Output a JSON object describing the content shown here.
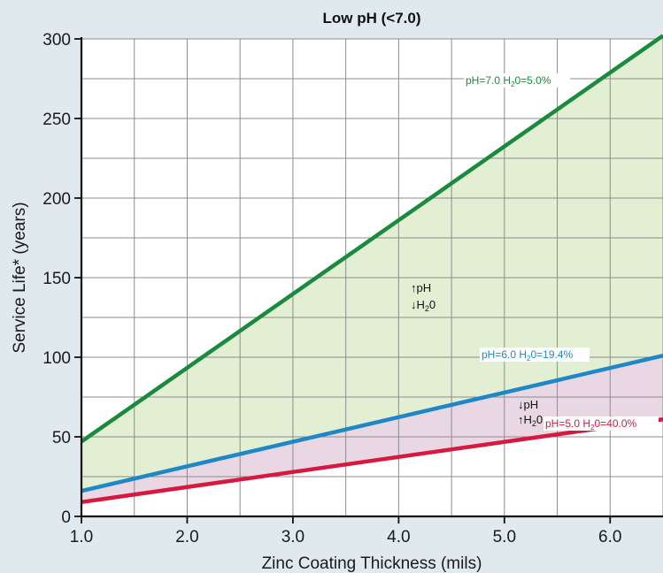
{
  "chart_data": {
    "type": "line",
    "title": "Low pH (<7.0)",
    "xlabel": "Zinc Coating Thickness (mils)",
    "ylabel": "Service Life* (years)",
    "xlim": [
      1.0,
      6.5
    ],
    "ylim": [
      0,
      300
    ],
    "x_ticks": [
      "1.0",
      "2.0",
      "3.0",
      "4.0",
      "5.0",
      "6.0"
    ],
    "y_ticks": [
      "0",
      "50",
      "100",
      "150",
      "200",
      "250",
      "300"
    ],
    "grid": true,
    "series": [
      {
        "name": "pH=7.0 H20=5.0%",
        "label_main": "pH=7.0 H",
        "label_sub": "2",
        "label_tail": "0=5.0%",
        "color": "#1a8a3e",
        "x": [
          1.0,
          6.5
        ],
        "y": [
          47,
          302
        ]
      },
      {
        "name": "pH=6.0 H20=19.4%",
        "label_main": "pH=6.0 H",
        "label_sub": "2",
        "label_tail": "0=19.4%",
        "color": "#1e88c7",
        "x": [
          1.0,
          6.5
        ],
        "y": [
          16,
          101
        ]
      },
      {
        "name": "pH=5.0 H20=40.0%",
        "label_main": "pH=5.0 H",
        "label_sub": "2",
        "label_tail": "0=40.0%",
        "color": "#d7193f",
        "x": [
          1.0,
          6.5
        ],
        "y": [
          9,
          61
        ]
      }
    ],
    "fills": [
      {
        "between": [
          "pH=7.0 H20=5.0%",
          "pH=6.0 H20=19.4%"
        ],
        "color": "#e2efd2"
      },
      {
        "between": [
          "pH=6.0 H20=19.4%",
          "pH=5.0 H20=40.0%"
        ],
        "color": "#ead7e4"
      }
    ],
    "annotations": [
      {
        "lines": [
          "↑pH",
          "↓H",
          "2",
          "0"
        ]
      },
      {
        "lines": [
          "↓pH",
          "↑H",
          "2",
          "0"
        ]
      }
    ]
  }
}
